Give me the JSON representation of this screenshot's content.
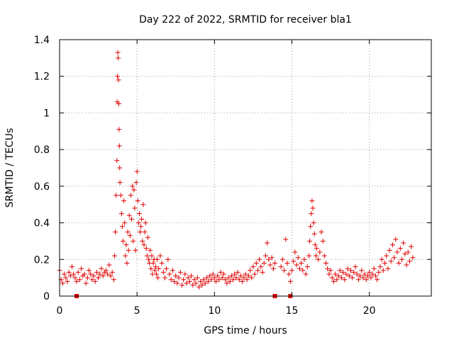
{
  "chart_data": {
    "type": "scatter",
    "title": "Day 222 of 2022, SRMTID for receiver bla1",
    "xlabel": "GPS time / hours",
    "ylabel": "SRMTID / TECUs",
    "xlim": [
      0,
      24
    ],
    "ylim": [
      0,
      1.4
    ],
    "xticks": [
      0,
      5,
      10,
      15,
      20
    ],
    "xtick_labels": [
      "0",
      "5",
      "10",
      "15",
      "20"
    ],
    "yticks": [
      0,
      0.2,
      0.4,
      0.6,
      0.8,
      1.0,
      1.2,
      1.4
    ],
    "ytick_labels": [
      "0",
      "0.2",
      "0.4",
      "0.6",
      "0.8",
      "1",
      "1.2",
      "1.4"
    ],
    "grid": true,
    "marker": "plus",
    "color": "#e00000",
    "series": [
      {
        "name": "SRMTID",
        "points": [
          [
            0.0,
            0.14
          ],
          [
            0.1,
            0.09
          ],
          [
            0.2,
            0.07
          ],
          [
            0.3,
            0.12
          ],
          [
            0.4,
            0.1
          ],
          [
            0.5,
            0.08
          ],
          [
            0.6,
            0.13
          ],
          [
            0.7,
            0.11
          ],
          [
            0.8,
            0.16
          ],
          [
            0.9,
            0.12
          ],
          [
            1.0,
            0.1
          ],
          [
            1.1,
            0.08
          ],
          [
            1.2,
            0.13
          ],
          [
            1.3,
            0.09
          ],
          [
            1.4,
            0.15
          ],
          [
            1.5,
            0.11
          ],
          [
            1.6,
            0.12
          ],
          [
            1.7,
            0.07
          ],
          [
            1.8,
            0.1
          ],
          [
            1.9,
            0.14
          ],
          [
            2.0,
            0.12
          ],
          [
            2.1,
            0.09
          ],
          [
            2.2,
            0.11
          ],
          [
            2.3,
            0.08
          ],
          [
            2.4,
            0.13
          ],
          [
            2.5,
            0.1
          ],
          [
            2.6,
            0.12
          ],
          [
            2.7,
            0.15
          ],
          [
            2.8,
            0.11
          ],
          [
            2.9,
            0.13
          ],
          [
            3.0,
            0.14
          ],
          [
            3.1,
            0.12
          ],
          [
            3.2,
            0.17
          ],
          [
            3.3,
            0.11
          ],
          [
            3.4,
            0.13
          ],
          [
            3.5,
            0.09
          ],
          [
            3.55,
            0.22
          ],
          [
            3.6,
            0.35
          ],
          [
            3.65,
            0.55
          ],
          [
            3.7,
            0.74
          ],
          [
            3.72,
            1.06
          ],
          [
            3.74,
            1.2
          ],
          [
            3.76,
            1.33
          ],
          [
            3.78,
            1.3
          ],
          [
            3.8,
            1.18
          ],
          [
            3.82,
            1.05
          ],
          [
            3.84,
            0.91
          ],
          [
            3.86,
            0.82
          ],
          [
            3.88,
            0.7
          ],
          [
            3.9,
            0.62
          ],
          [
            3.95,
            0.55
          ],
          [
            4.0,
            0.45
          ],
          [
            4.05,
            0.38
          ],
          [
            4.1,
            0.3
          ],
          [
            4.15,
            0.52
          ],
          [
            4.2,
            0.4
          ],
          [
            4.25,
            0.22
          ],
          [
            4.3,
            0.28
          ],
          [
            4.35,
            0.18
          ],
          [
            4.4,
            0.35
          ],
          [
            4.45,
            0.25
          ],
          [
            4.5,
            0.44
          ],
          [
            4.55,
            0.33
          ],
          [
            4.6,
            0.55
          ],
          [
            4.65,
            0.42
          ],
          [
            4.7,
            0.6
          ],
          [
            4.75,
            0.3
          ],
          [
            4.8,
            0.58
          ],
          [
            4.85,
            0.48
          ],
          [
            4.9,
            0.25
          ],
          [
            4.95,
            0.62
          ],
          [
            5.0,
            0.68
          ],
          [
            5.05,
            0.52
          ],
          [
            5.1,
            0.4
          ],
          [
            5.15,
            0.45
          ],
          [
            5.2,
            0.35
          ],
          [
            5.25,
            0.38
          ],
          [
            5.3,
            0.42
          ],
          [
            5.35,
            0.3
          ],
          [
            5.4,
            0.5
          ],
          [
            5.45,
            0.28
          ],
          [
            5.5,
            0.35
          ],
          [
            5.55,
            0.4
          ],
          [
            5.6,
            0.26
          ],
          [
            5.65,
            0.22
          ],
          [
            5.7,
            0.32
          ],
          [
            5.75,
            0.2
          ],
          [
            5.8,
            0.18
          ],
          [
            5.85,
            0.25
          ],
          [
            5.9,
            0.15
          ],
          [
            5.95,
            0.22
          ],
          [
            6.0,
            0.12
          ],
          [
            6.05,
            0.18
          ],
          [
            6.1,
            0.2
          ],
          [
            6.15,
            0.14
          ],
          [
            6.2,
            0.16
          ],
          [
            6.25,
            0.12
          ],
          [
            6.3,
            0.2
          ],
          [
            6.35,
            0.1
          ],
          [
            6.4,
            0.15
          ],
          [
            6.5,
            0.22
          ],
          [
            6.6,
            0.18
          ],
          [
            6.7,
            0.13
          ],
          [
            6.8,
            0.1
          ],
          [
            6.9,
            0.15
          ],
          [
            7.0,
            0.2
          ],
          [
            7.1,
            0.12
          ],
          [
            7.2,
            0.09
          ],
          [
            7.3,
            0.14
          ],
          [
            7.4,
            0.08
          ],
          [
            7.5,
            0.11
          ],
          [
            7.6,
            0.07
          ],
          [
            7.7,
            0.1
          ],
          [
            7.8,
            0.13
          ],
          [
            7.9,
            0.06
          ],
          [
            8.0,
            0.09
          ],
          [
            8.1,
            0.12
          ],
          [
            8.2,
            0.07
          ],
          [
            8.3,
            0.1
          ],
          [
            8.4,
            0.08
          ],
          [
            8.5,
            0.11
          ],
          [
            8.6,
            0.06
          ],
          [
            8.7,
            0.09
          ],
          [
            8.8,
            0.07
          ],
          [
            8.9,
            0.1
          ],
          [
            9.0,
            0.05
          ],
          [
            9.1,
            0.08
          ],
          [
            9.2,
            0.06
          ],
          [
            9.3,
            0.09
          ],
          [
            9.4,
            0.07
          ],
          [
            9.5,
            0.1
          ],
          [
            9.6,
            0.08
          ],
          [
            9.7,
            0.11
          ],
          [
            9.8,
            0.09
          ],
          [
            9.9,
            0.12
          ],
          [
            10.0,
            0.1
          ],
          [
            10.1,
            0.08
          ],
          [
            10.2,
            0.11
          ],
          [
            10.3,
            0.09
          ],
          [
            10.4,
            0.13
          ],
          [
            10.5,
            0.1
          ],
          [
            10.6,
            0.12
          ],
          [
            10.7,
            0.09
          ],
          [
            10.8,
            0.07
          ],
          [
            10.9,
            0.1
          ],
          [
            11.0,
            0.08
          ],
          [
            11.1,
            0.11
          ],
          [
            11.2,
            0.09
          ],
          [
            11.3,
            0.12
          ],
          [
            11.4,
            0.1
          ],
          [
            11.5,
            0.13
          ],
          [
            11.6,
            0.09
          ],
          [
            11.7,
            0.11
          ],
          [
            11.8,
            0.08
          ],
          [
            11.9,
            0.1
          ],
          [
            12.0,
            0.12
          ],
          [
            12.1,
            0.09
          ],
          [
            12.2,
            0.11
          ],
          [
            12.3,
            0.14
          ],
          [
            12.4,
            0.1
          ],
          [
            12.5,
            0.16
          ],
          [
            12.6,
            0.12
          ],
          [
            12.7,
            0.18
          ],
          [
            12.8,
            0.14
          ],
          [
            12.9,
            0.2
          ],
          [
            13.0,
            0.16
          ],
          [
            13.1,
            0.13
          ],
          [
            13.2,
            0.18
          ],
          [
            13.3,
            0.22
          ],
          [
            13.4,
            0.29
          ],
          [
            13.5,
            0.2
          ],
          [
            13.6,
            0.17
          ],
          [
            13.7,
            0.21
          ],
          [
            13.8,
            0.15
          ],
          [
            13.9,
            0.18
          ],
          [
            14.3,
            0.16
          ],
          [
            14.4,
            0.2
          ],
          [
            14.5,
            0.14
          ],
          [
            14.6,
            0.31
          ],
          [
            14.7,
            0.18
          ],
          [
            14.8,
            0.12
          ],
          [
            14.9,
            0.08
          ],
          [
            15.0,
            0.14
          ],
          [
            15.1,
            0.19
          ],
          [
            15.2,
            0.24
          ],
          [
            15.3,
            0.17
          ],
          [
            15.4,
            0.21
          ],
          [
            15.5,
            0.15
          ],
          [
            15.6,
            0.18
          ],
          [
            15.7,
            0.14
          ],
          [
            15.8,
            0.2
          ],
          [
            15.9,
            0.12
          ],
          [
            16.0,
            0.16
          ],
          [
            16.1,
            0.22
          ],
          [
            16.15,
            0.3
          ],
          [
            16.2,
            0.38
          ],
          [
            16.25,
            0.45
          ],
          [
            16.3,
            0.52
          ],
          [
            16.35,
            0.48
          ],
          [
            16.4,
            0.4
          ],
          [
            16.45,
            0.34
          ],
          [
            16.5,
            0.28
          ],
          [
            16.55,
            0.22
          ],
          [
            16.6,
            0.26
          ],
          [
            16.7,
            0.2
          ],
          [
            16.8,
            0.24
          ],
          [
            16.9,
            0.35
          ],
          [
            17.0,
            0.3
          ],
          [
            17.1,
            0.22
          ],
          [
            17.2,
            0.18
          ],
          [
            17.3,
            0.15
          ],
          [
            17.4,
            0.12
          ],
          [
            17.5,
            0.14
          ],
          [
            17.6,
            0.1
          ],
          [
            17.7,
            0.08
          ],
          [
            17.8,
            0.12
          ],
          [
            17.9,
            0.09
          ],
          [
            18.0,
            0.11
          ],
          [
            18.1,
            0.14
          ],
          [
            18.2,
            0.1
          ],
          [
            18.3,
            0.13
          ],
          [
            18.4,
            0.09
          ],
          [
            18.5,
            0.12
          ],
          [
            18.6,
            0.15
          ],
          [
            18.7,
            0.11
          ],
          [
            18.8,
            0.14
          ],
          [
            18.9,
            0.1
          ],
          [
            19.0,
            0.13
          ],
          [
            19.1,
            0.16
          ],
          [
            19.2,
            0.12
          ],
          [
            19.3,
            0.09
          ],
          [
            19.4,
            0.11
          ],
          [
            19.5,
            0.14
          ],
          [
            19.6,
            0.1
          ],
          [
            19.7,
            0.12
          ],
          [
            19.8,
            0.09
          ],
          [
            19.9,
            0.11
          ],
          [
            20.0,
            0.13
          ],
          [
            20.1,
            0.1
          ],
          [
            20.2,
            0.12
          ],
          [
            20.3,
            0.15
          ],
          [
            20.4,
            0.11
          ],
          [
            20.5,
            0.09
          ],
          [
            20.6,
            0.13
          ],
          [
            20.7,
            0.16
          ],
          [
            20.8,
            0.2
          ],
          [
            20.9,
            0.14
          ],
          [
            21.0,
            0.18
          ],
          [
            21.1,
            0.22
          ],
          [
            21.2,
            0.15
          ],
          [
            21.3,
            0.25
          ],
          [
            21.4,
            0.19
          ],
          [
            21.5,
            0.28
          ],
          [
            21.6,
            0.21
          ],
          [
            21.7,
            0.31
          ],
          [
            21.8,
            0.24
          ],
          [
            21.9,
            0.18
          ],
          [
            22.0,
            0.26
          ],
          [
            22.1,
            0.2
          ],
          [
            22.2,
            0.29
          ],
          [
            22.3,
            0.23
          ],
          [
            22.4,
            0.17
          ],
          [
            22.5,
            0.24
          ],
          [
            22.6,
            0.19
          ],
          [
            22.7,
            0.27
          ],
          [
            22.8,
            0.21
          ]
        ]
      }
    ],
    "gap_markers_x": [
      1.1,
      13.9,
      14.9
    ]
  }
}
